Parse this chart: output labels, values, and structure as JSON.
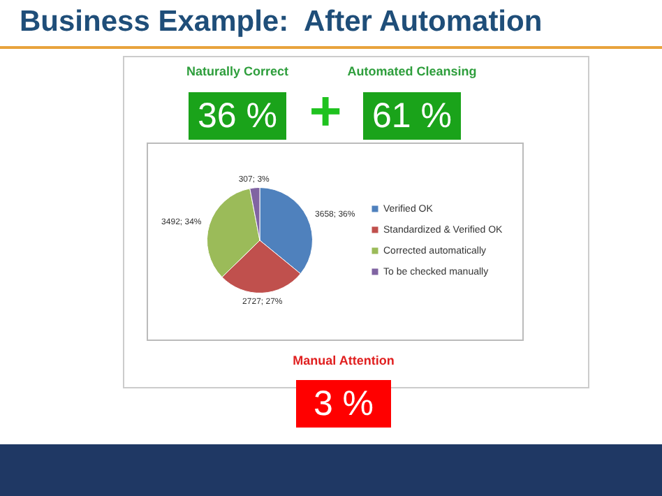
{
  "chart_data": {
    "type": "pie",
    "title": "Business Example:  After Automation",
    "categories": [
      "Verified OK",
      "Standardized & Verified OK",
      "Corrected automatically",
      "To be checked manually"
    ],
    "values": [
      3658,
      2727,
      3492,
      307
    ],
    "colors": [
      "#4f81bd",
      "#c0504d",
      "#9bbb59",
      "#8064a2"
    ],
    "value_labels": [
      "3658; 36%",
      "2727; 27%",
      "3492; 34%",
      "307; 3%"
    ],
    "legend": "right",
    "annotations": [
      "Naturally Correct",
      "36 %",
      "+",
      "Automated Cleansing",
      "61 %",
      "Manual Attention",
      "3 %"
    ]
  }
}
